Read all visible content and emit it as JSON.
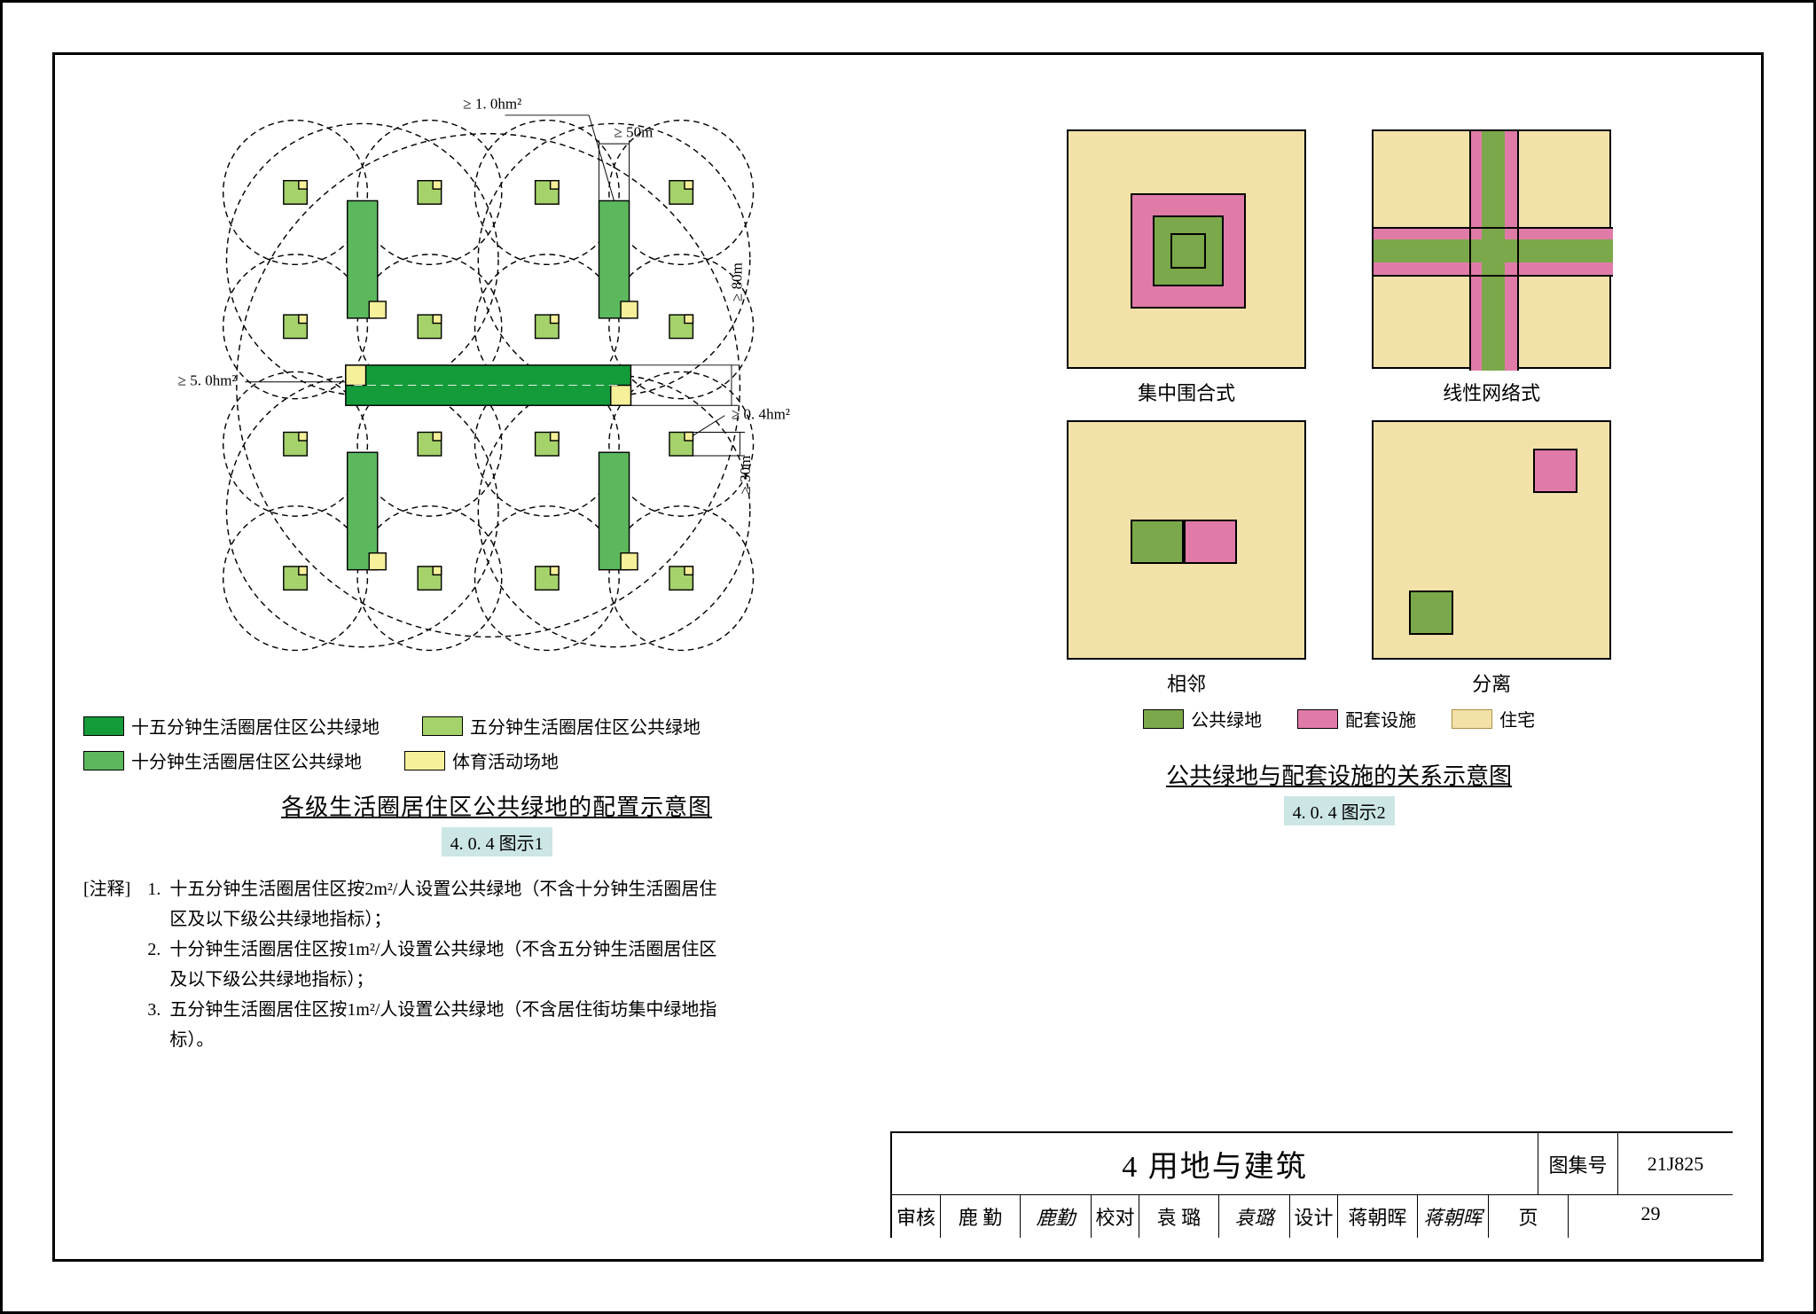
{
  "colors": {
    "green15": "#149b3a",
    "green10": "#5cb85c",
    "green5": "#a6d26b",
    "sport": "#f5f099",
    "residence": "#f2e1a8",
    "facility": "#e07ba8",
    "pubgreen": "#7ba84a",
    "bgPanel": "#f2e1a8",
    "figTagBg": "#c8e3e3",
    "circleStroke": "#000000",
    "residenceStroke": "#b08f40"
  },
  "left": {
    "annotations": {
      "area_top": "≥ 1. 0hm²",
      "width_top": "≥ 50m",
      "height_mid": "≥ 80m",
      "area_center": "≥ 5. 0hm²",
      "area_small": "≥ 0. 4hm²",
      "height_small": "≥ 30m"
    },
    "diagram": {
      "outer_r": 300,
      "big_r": 162,
      "small_r": 86,
      "big_centers": [
        [
          -150,
          -150
        ],
        [
          150,
          -150
        ],
        [
          -150,
          150
        ],
        [
          150,
          150
        ]
      ],
      "small_off": 80
    },
    "legend": [
      {
        "color": "green15",
        "label": "十五分钟生活圈居住区公共绿地"
      },
      {
        "color": "green5",
        "label": "五分钟生活圈居住区公共绿地"
      },
      {
        "color": "green10",
        "label": "十分钟生活圈居住区公共绿地"
      },
      {
        "color": "sport",
        "label": "体育活动场地"
      }
    ],
    "caption": "各级生活圈居住区公共绿地的配置示意图",
    "fig": "4. 0. 4  图示1",
    "notes_label": "[注释]",
    "notes": [
      "十五分钟生活圈居住区按2m²/人设置公共绿地（不含十分钟生活圈居住区及以下级公共绿地指标）；",
      "十分钟生活圈居住区按1m²/人设置公共绿地（不含五分钟生活圈居住区及以下级公共绿地指标）；",
      "五分钟生活圈居住区按1m²/人设置公共绿地（不含居住街坊集中绿地指标）。"
    ]
  },
  "right": {
    "panels": {
      "p1_label": "集中围合式",
      "p2_label": "线性网络式",
      "p3_label": "相邻",
      "p4_label": "分离"
    },
    "legend": [
      {
        "color": "pubgreen",
        "label": "公共绿地"
      },
      {
        "color": "facility",
        "label": "配套设施"
      },
      {
        "color": "residence",
        "label": "住宅"
      }
    ],
    "caption": "公共绿地与配套设施的关系示意图",
    "fig": "4. 0. 4  图示2"
  },
  "titleblock": {
    "title": "4  用地与建筑",
    "setnum_label": "图集号",
    "setnum": "21J825",
    "row": [
      {
        "k": "审核",
        "v": "鹿 勤",
        "sig": "鹿勤"
      },
      {
        "k": "校对",
        "v": "袁 璐",
        "sig": "袁璐"
      },
      {
        "k": "设计",
        "v": "蒋朝晖",
        "sig": "蒋朝晖"
      }
    ],
    "page_label": "页",
    "page": "29"
  }
}
